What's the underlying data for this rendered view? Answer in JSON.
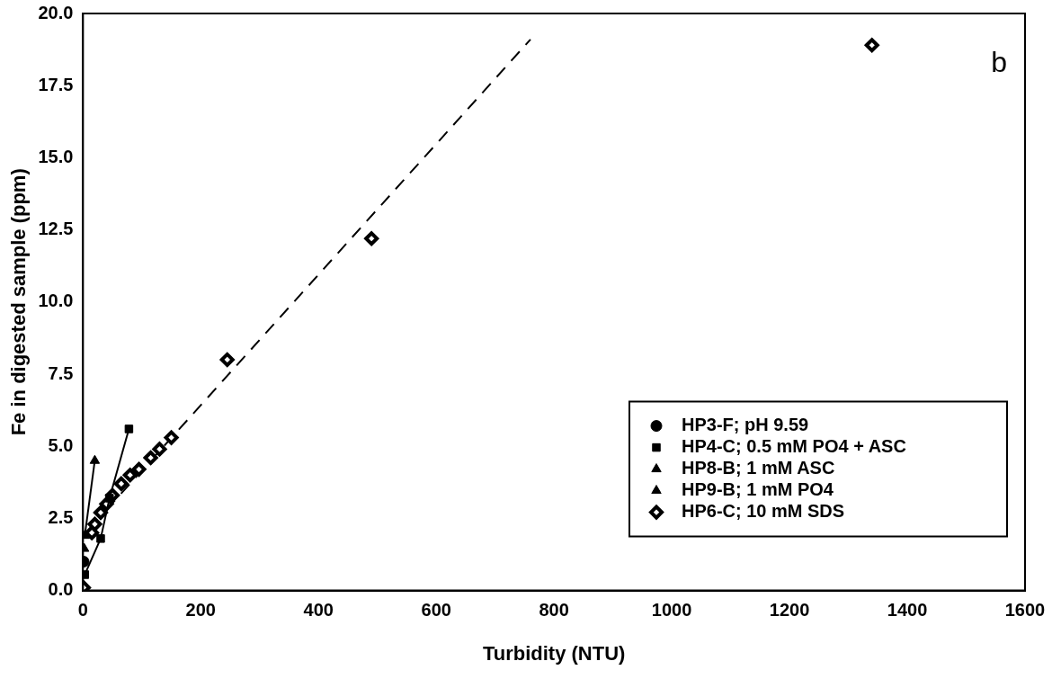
{
  "chart_data": {
    "type": "scatter",
    "xlabel": "Turbidity (NTU)",
    "ylabel": "Fe in digested sample (ppm)",
    "xlim": [
      0,
      1600
    ],
    "xticks": [
      0,
      200,
      400,
      600,
      800,
      1000,
      1200,
      1400,
      1600
    ],
    "ylim": [
      0,
      20
    ],
    "yticks": [
      {
        "value": 0,
        "label": "0.0"
      },
      {
        "value": 2.5,
        "label": "2.5"
      },
      {
        "value": 5,
        "label": "5.0"
      },
      {
        "value": 7.5,
        "label": "7.5"
      },
      {
        "value": 10,
        "label": "10.0"
      },
      {
        "value": 12.5,
        "label": "12.5"
      },
      {
        "value": 15,
        "label": "15.0"
      },
      {
        "value": 17.5,
        "label": "17.5"
      },
      {
        "value": 20,
        "label": "20.0"
      }
    ],
    "grid": false,
    "legend": "bottom right",
    "annotations": [
      "b"
    ],
    "series": [
      {
        "name": "HP3-F; pH 9.59",
        "type": "scatter",
        "marker": "circle",
        "color": "#000000",
        "x": [
          1
        ],
        "values": [
          1.0
        ]
      },
      {
        "name": "HP4-C; 0.5 mM PO4 + ASC",
        "type": "line",
        "marker": "square",
        "color": "#000000",
        "x": [
          3,
          30,
          45,
          78
        ],
        "values": [
          0.55,
          1.8,
          3.2,
          5.6
        ]
      },
      {
        "name": "HP8-B; 1 mM ASC",
        "type": "scatter",
        "marker": "triangle",
        "color": "#000000",
        "x": [
          2
        ],
        "values": [
          1.45
        ]
      },
      {
        "name": "HP9-B; 1 mM PO4",
        "type": "line",
        "marker": "triangle",
        "color": "#000000",
        "x": [
          3,
          20
        ],
        "values": [
          1.9,
          4.5
        ]
      },
      {
        "name": "HP6-C; 10 mM SDS",
        "type": "scatter",
        "marker": "diamond",
        "color": "#000000",
        "x": [
          1,
          15,
          20,
          30,
          40,
          50,
          65,
          80,
          95,
          115,
          130,
          150,
          245,
          490,
          1340
        ],
        "values": [
          0.1,
          2.0,
          2.3,
          2.7,
          3.0,
          3.3,
          3.7,
          4.0,
          4.2,
          4.6,
          4.9,
          5.3,
          8.0,
          12.2,
          18.9
        ]
      },
      {
        "type": "line",
        "marker": "none",
        "line_style": "dashed",
        "color": "#000000",
        "x": [
          40,
          760
        ],
        "values": [
          2.8,
          19.1
        ]
      }
    ]
  }
}
